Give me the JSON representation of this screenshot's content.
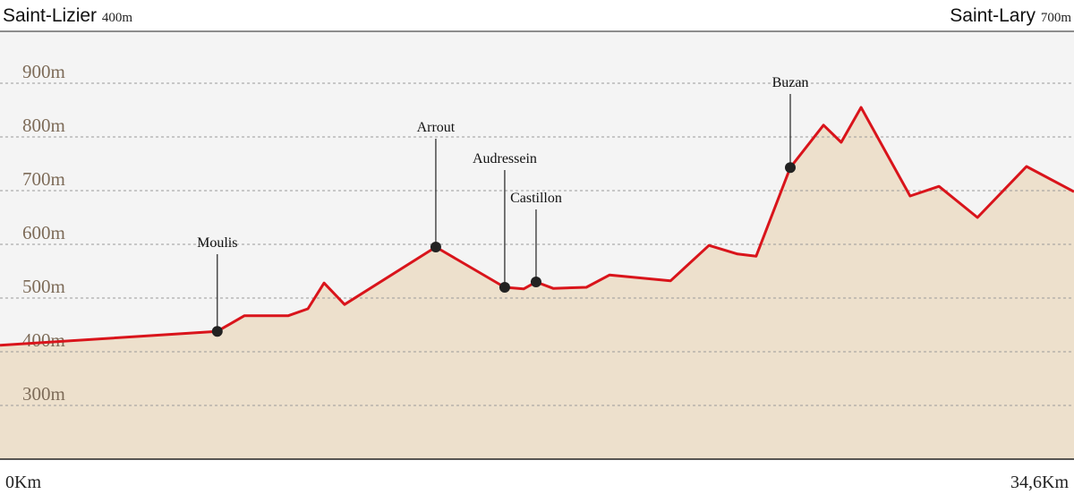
{
  "chart_data": {
    "type": "area",
    "endpoints": [
      {
        "name": "Saint-Lizier",
        "label": "400m"
      },
      {
        "name": "Saint-Lary",
        "label": "700m"
      }
    ],
    "xlim": [
      0,
      34.6
    ],
    "xticks": [
      {
        "value": 0,
        "label": "0Km"
      },
      {
        "value": 34.6,
        "label": "34,6Km"
      }
    ],
    "ylim": [
      200,
      1000
    ],
    "yticks": [
      {
        "value": 300,
        "label": "300m"
      },
      {
        "value": 400,
        "label": "400m"
      },
      {
        "value": 500,
        "label": "500m"
      },
      {
        "value": 600,
        "label": "600m"
      },
      {
        "value": 700,
        "label": "700m"
      },
      {
        "value": 800,
        "label": "800m"
      },
      {
        "value": 900,
        "label": "900m"
      }
    ],
    "grid": true,
    "series": [
      {
        "color": "#d9141b",
        "fill": "#ede0cc",
        "x": [
          0,
          7.0,
          7.87,
          9.28,
          9.92,
          10.44,
          11.1,
          14.04,
          16.26,
          16.87,
          17.27,
          17.82,
          18.89,
          19.64,
          21.6,
          22.84,
          23.76,
          24.36,
          25.46,
          26.53,
          27.1,
          27.74,
          29.32,
          30.25,
          31.49,
          33.07,
          34.6
        ],
        "values": [
          412,
          438,
          467,
          467,
          480,
          528,
          488,
          595,
          520,
          517,
          530,
          518,
          520,
          543,
          532,
          598,
          582,
          578,
          743,
          822,
          790,
          855,
          690,
          708,
          650,
          745,
          698
        ]
      }
    ],
    "markers": [
      {
        "name": "Moulis",
        "x": 7.0,
        "y": 438
      },
      {
        "name": "Arrout",
        "x": 14.04,
        "y": 595
      },
      {
        "name": "Audressein",
        "x": 16.26,
        "y": 520
      },
      {
        "name": "Castillon",
        "x": 17.27,
        "y": 530
      },
      {
        "name": "Buzan",
        "x": 25.46,
        "y": 743
      }
    ]
  }
}
